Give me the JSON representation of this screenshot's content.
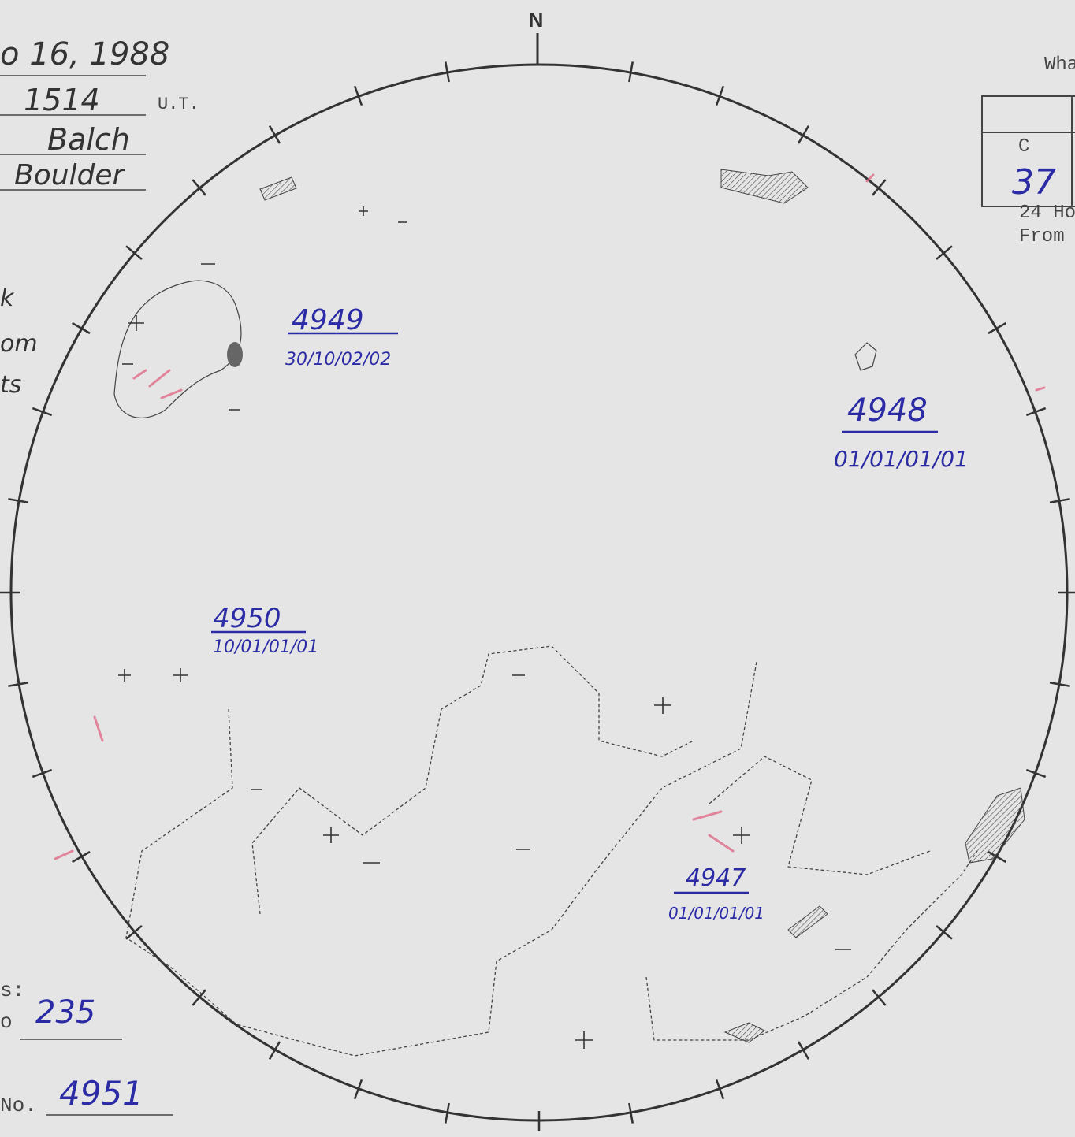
{
  "header": {
    "north": "N",
    "date": "o 16, 1988",
    "time": "1514",
    "time_unit": "U.T.",
    "observer": "Balch",
    "location": "Boulder"
  },
  "left_notes": [
    "k",
    "om",
    "ts"
  ],
  "top_right": {
    "heading": "Wha",
    "table": {
      "header": "C",
      "value": "37"
    },
    "notes": [
      "24 Ho",
      "From"
    ]
  },
  "regions": [
    {
      "number": "4949",
      "code": "30/10/02/02"
    },
    {
      "number": "4948",
      "code": "01/01/01/01"
    },
    {
      "number": "4950",
      "code": "10/01/01/01"
    },
    {
      "number": "4947",
      "code": "01/01/01/01"
    }
  ],
  "footer": {
    "label": "s:",
    "sublabel": "o",
    "value": "235",
    "number_label": "No.",
    "number": "4951"
  }
}
